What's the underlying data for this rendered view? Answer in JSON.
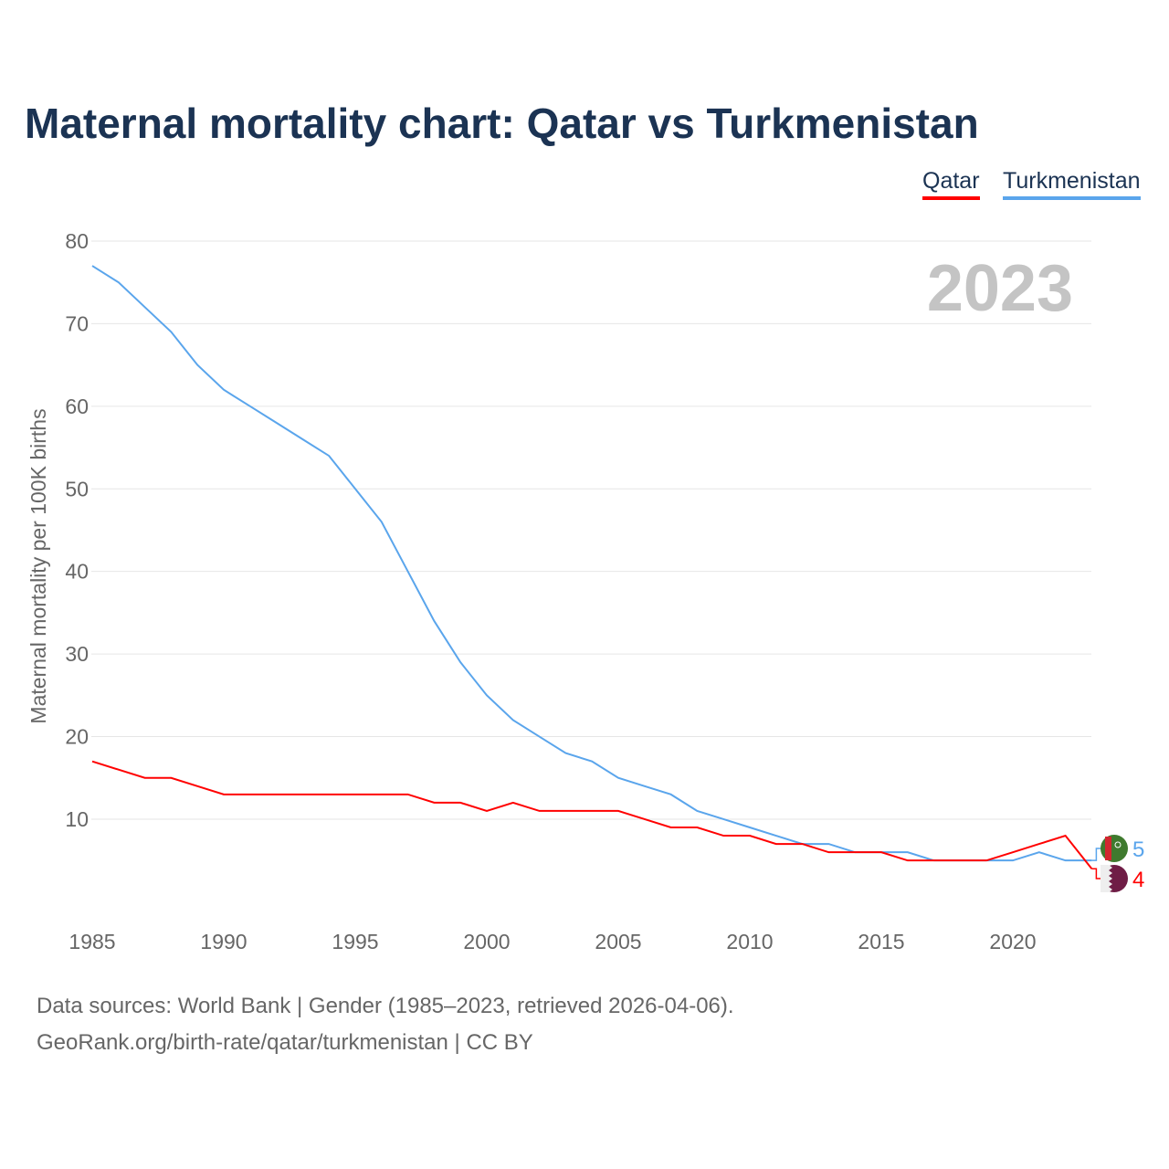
{
  "title": "Maternal mortality chart: Qatar vs Turkmenistan",
  "chart_data": {
    "type": "line",
    "title": "Maternal mortality chart: Qatar vs Turkmenistan",
    "xlabel": "",
    "ylabel": "Maternal mortality per 100K births",
    "xlim": [
      1985,
      2023
    ],
    "ylim": [
      0,
      80
    ],
    "x_ticks": [
      1985,
      1990,
      1995,
      2000,
      2005,
      2010,
      2015,
      2020
    ],
    "y_ticks": [
      10,
      20,
      30,
      40,
      50,
      60,
      70,
      80
    ],
    "grid": true,
    "legend_position": "top-right",
    "year_label": "2023",
    "x": [
      1985,
      1986,
      1987,
      1988,
      1989,
      1990,
      1991,
      1992,
      1993,
      1994,
      1995,
      1996,
      1997,
      1998,
      1999,
      2000,
      2001,
      2002,
      2003,
      2004,
      2005,
      2006,
      2007,
      2008,
      2009,
      2010,
      2011,
      2012,
      2013,
      2014,
      2015,
      2016,
      2017,
      2018,
      2019,
      2020,
      2021,
      2022,
      2023
    ],
    "series": [
      {
        "name": "Qatar",
        "color": "#ff0000",
        "end_label": "4",
        "values": [
          17,
          16,
          15,
          15,
          14,
          13,
          13,
          13,
          13,
          13,
          13,
          13,
          13,
          12,
          12,
          11,
          12,
          11,
          11,
          11,
          11,
          10,
          9,
          9,
          8,
          8,
          7,
          7,
          6,
          6,
          6,
          5,
          5,
          5,
          5,
          6,
          7,
          8,
          4
        ]
      },
      {
        "name": "Turkmenistan",
        "color": "#5aa5ec",
        "end_label": "5",
        "values": [
          77,
          75,
          72,
          69,
          65,
          62,
          60,
          58,
          56,
          54,
          50,
          46,
          40,
          34,
          29,
          25,
          22,
          20,
          18,
          17,
          15,
          14,
          13,
          11,
          10,
          9,
          8,
          7,
          7,
          6,
          6,
          6,
          5,
          5,
          5,
          5,
          6,
          5,
          5
        ]
      }
    ]
  },
  "sources": {
    "line1": "Data sources: World Bank | Gender (1985–2023, retrieved 2026-04-06).",
    "line2": "GeoRank.org/birth-rate/qatar/turkmenistan | CC BY"
  }
}
